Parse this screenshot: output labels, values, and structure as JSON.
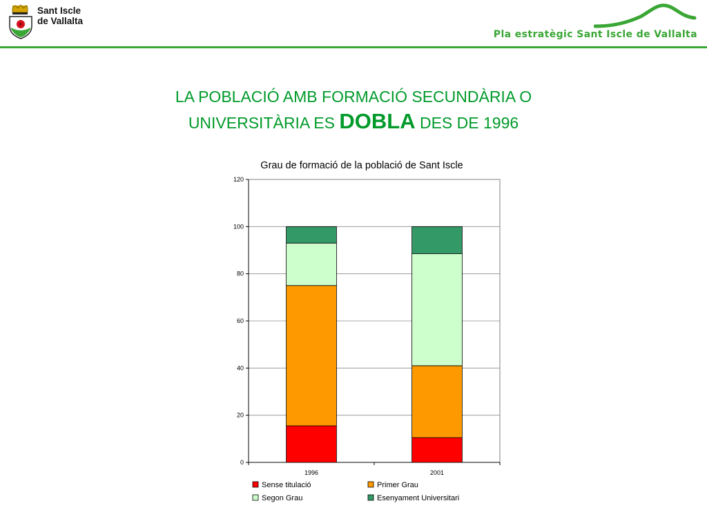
{
  "header": {
    "org_line1": "Sant Iscle",
    "org_line2": "de Vallalta",
    "plan_title": "Pla estratègic Sant Iscle de Vallalta",
    "accent_color": "#3aa635"
  },
  "slide": {
    "title_line1": "LA POBLACIÓ AMB FORMACIÓ SECUNDÀRIA O",
    "title_line2_pre": "UNIVERSITÀRIA ES",
    "title_emphasis": "DOBLA",
    "title_line2_post": "DES DE 1996",
    "title_color": "#009a2a"
  },
  "chart_data": {
    "type": "bar",
    "stacked": true,
    "title": "Grau de formació de la població de Sant Iscle",
    "xlabel": "",
    "ylabel": "",
    "categories": [
      "1996",
      "2001"
    ],
    "ylim": [
      0,
      120
    ],
    "yticks": [
      0,
      20,
      40,
      60,
      80,
      100,
      120
    ],
    "grid": true,
    "legend_position": "bottom",
    "series": [
      {
        "name": "Sense titulació",
        "color": "#ff0000",
        "values": [
          15.5,
          10.5
        ]
      },
      {
        "name": "Primer Grau",
        "color": "#ff9900",
        "values": [
          59.5,
          30.5
        ]
      },
      {
        "name": "Segon Grau",
        "color": "#ccffcc",
        "values": [
          18,
          47.5
        ]
      },
      {
        "name": "Esenyament Universitari",
        "color": "#339966",
        "values": [
          7,
          11.5
        ]
      }
    ]
  }
}
